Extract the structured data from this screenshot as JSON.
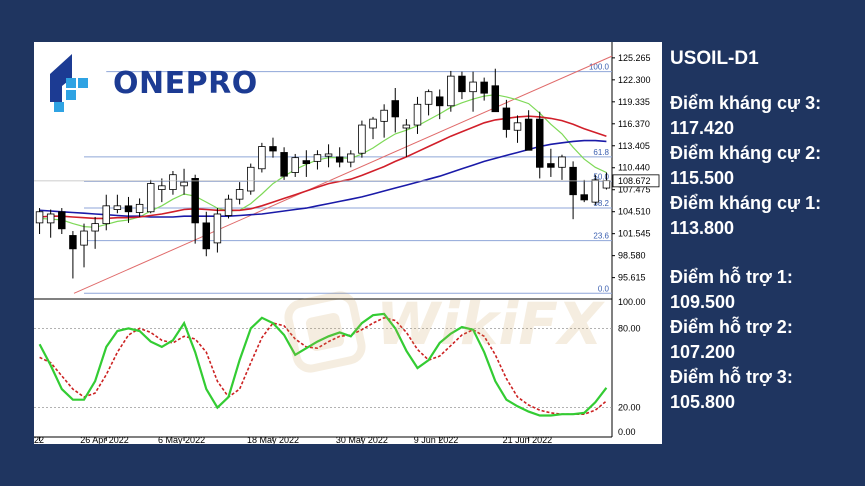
{
  "logo": {
    "text": "ONEPRO"
  },
  "watermark": {
    "text": "WikiFX"
  },
  "panel": {
    "symbol": "USOIL-D1",
    "levels": [
      {
        "label": "Điểm kháng cự 3:",
        "value": "117.420"
      },
      {
        "label": "Điểm kháng cự 2:",
        "value": "115.500"
      },
      {
        "label": "Điểm kháng cự 1:",
        "value": "113.800"
      },
      {
        "label": "Điểm hỗ trợ 1:",
        "value": "109.500"
      },
      {
        "label": "Điểm hỗ trợ 2:",
        "value": "107.200"
      },
      {
        "label": "Điểm hỗ trợ 3:",
        "value": "105.800"
      }
    ]
  },
  "colors": {
    "background": "#1f3560",
    "bull_candle": "#ffffff",
    "bear_candle": "#000000",
    "ma_fast": "#7ed957",
    "ma_mid": "#d11f2a",
    "ma_slow": "#1a1aa8",
    "fib_line": "#8fa6d8",
    "trendline": "#e06b6b",
    "stoch_k": "#33cc33",
    "stoch_d": "#cc2222"
  },
  "chart_data": {
    "type": "candlestick",
    "price_axis": {
      "ylim": [
        93.0,
        127.0
      ],
      "ticks": [
        "125.265",
        "122.300",
        "119.335",
        "116.370",
        "113.405",
        "110.440",
        "107.475",
        "104.510",
        "101.545",
        "98.580",
        "95.615"
      ],
      "tick_values": [
        125.265,
        122.3,
        119.335,
        116.37,
        113.405,
        110.44,
        107.475,
        104.51,
        101.545,
        98.58,
        95.615
      ],
      "current_price": "108.672"
    },
    "date_axis": {
      "labels": [
        "22",
        "26 Apr 2022",
        "6 May 2022",
        "18 May 2022",
        "30 May 2022",
        "9 Jun 2022",
        "21 Jun 2022"
      ],
      "label_index": [
        0,
        6,
        13,
        21,
        29,
        36,
        44
      ]
    },
    "fib_levels": [
      {
        "label": "100.0",
        "value": 123.4
      },
      {
        "label": "61.8",
        "value": 111.9
      },
      {
        "label": "50.0",
        "value": 108.6
      },
      {
        "label": "38.2",
        "value": 105.0
      },
      {
        "label": "23.6",
        "value": 100.6
      },
      {
        "label": "0.0",
        "value": 93.5
      }
    ],
    "candles": [
      {
        "o": 103.0,
        "h": 105.0,
        "l": 101.5,
        "c": 104.5
      },
      {
        "o": 103.0,
        "h": 104.8,
        "l": 101.0,
        "c": 104.2
      },
      {
        "o": 104.5,
        "h": 105.0,
        "l": 101.5,
        "c": 102.2
      },
      {
        "o": 101.3,
        "h": 101.9,
        "l": 95.5,
        "c": 99.5
      },
      {
        "o": 100.0,
        "h": 102.9,
        "l": 97.0,
        "c": 101.9
      },
      {
        "o": 101.9,
        "h": 103.8,
        "l": 99.5,
        "c": 102.9
      },
      {
        "o": 102.9,
        "h": 106.8,
        "l": 102.0,
        "c": 105.3
      },
      {
        "o": 104.8,
        "h": 106.8,
        "l": 104.3,
        "c": 105.3
      },
      {
        "o": 105.3,
        "h": 106.5,
        "l": 103.0,
        "c": 104.5
      },
      {
        "o": 104.4,
        "h": 106.3,
        "l": 103.8,
        "c": 105.5
      },
      {
        "o": 104.5,
        "h": 108.8,
        "l": 104.3,
        "c": 108.3
      },
      {
        "o": 107.5,
        "h": 109.0,
        "l": 105.8,
        "c": 108.0
      },
      {
        "o": 107.5,
        "h": 110.0,
        "l": 106.8,
        "c": 109.5
      },
      {
        "o": 108.0,
        "h": 110.3,
        "l": 106.8,
        "c": 108.5
      },
      {
        "o": 109.0,
        "h": 109.5,
        "l": 100.2,
        "c": 103.0
      },
      {
        "o": 103.0,
        "h": 104.5,
        "l": 98.5,
        "c": 99.5
      },
      {
        "o": 100.3,
        "h": 105.0,
        "l": 99.0,
        "c": 104.2
      },
      {
        "o": 104.0,
        "h": 106.8,
        "l": 103.6,
        "c": 106.2
      },
      {
        "o": 106.2,
        "h": 108.5,
        "l": 105.5,
        "c": 107.5
      },
      {
        "o": 107.3,
        "h": 111.0,
        "l": 106.8,
        "c": 110.5
      },
      {
        "o": 110.3,
        "h": 113.8,
        "l": 109.8,
        "c": 113.3
      },
      {
        "o": 113.3,
        "h": 114.5,
        "l": 111.8,
        "c": 112.7
      },
      {
        "o": 112.5,
        "h": 113.2,
        "l": 108.8,
        "c": 109.3
      },
      {
        "o": 109.8,
        "h": 112.3,
        "l": 109.2,
        "c": 111.8
      },
      {
        "o": 111.4,
        "h": 112.8,
        "l": 109.2,
        "c": 111.0
      },
      {
        "o": 111.3,
        "h": 112.8,
        "l": 110.2,
        "c": 112.2
      },
      {
        "o": 112.0,
        "h": 113.6,
        "l": 110.5,
        "c": 112.3
      },
      {
        "o": 111.9,
        "h": 113.2,
        "l": 110.5,
        "c": 111.2
      },
      {
        "o": 111.2,
        "h": 112.8,
        "l": 110.5,
        "c": 112.3
      },
      {
        "o": 112.4,
        "h": 116.8,
        "l": 111.8,
        "c": 116.2
      },
      {
        "o": 115.8,
        "h": 117.3,
        "l": 114.3,
        "c": 117.0
      },
      {
        "o": 116.7,
        "h": 119.0,
        "l": 114.5,
        "c": 118.2
      },
      {
        "o": 119.5,
        "h": 121.2,
        "l": 115.2,
        "c": 117.3
      },
      {
        "o": 115.8,
        "h": 117.0,
        "l": 111.9,
        "c": 116.2
      },
      {
        "o": 116.2,
        "h": 120.0,
        "l": 115.0,
        "c": 119.0
      },
      {
        "o": 119.0,
        "h": 121.0,
        "l": 117.5,
        "c": 120.7
      },
      {
        "o": 120.0,
        "h": 121.0,
        "l": 117.0,
        "c": 118.8
      },
      {
        "o": 118.8,
        "h": 123.5,
        "l": 118.0,
        "c": 122.8
      },
      {
        "o": 122.8,
        "h": 123.4,
        "l": 119.7,
        "c": 120.7
      },
      {
        "o": 120.7,
        "h": 123.4,
        "l": 118.0,
        "c": 122.0
      },
      {
        "o": 122.0,
        "h": 122.6,
        "l": 119.5,
        "c": 120.5
      },
      {
        "o": 121.5,
        "h": 123.8,
        "l": 118.0,
        "c": 118.0
      },
      {
        "o": 118.5,
        "h": 119.6,
        "l": 114.5,
        "c": 115.6
      },
      {
        "o": 115.5,
        "h": 117.5,
        "l": 113.8,
        "c": 116.5
      },
      {
        "o": 117.0,
        "h": 118.2,
        "l": 112.8,
        "c": 112.8
      },
      {
        "o": 117.0,
        "h": 118.0,
        "l": 109.0,
        "c": 110.5
      },
      {
        "o": 111.0,
        "h": 113.0,
        "l": 109.2,
        "c": 110.5
      },
      {
        "o": 110.5,
        "h": 112.2,
        "l": 108.8,
        "c": 111.9
      },
      {
        "o": 110.5,
        "h": 111.3,
        "l": 103.5,
        "c": 106.8
      },
      {
        "o": 106.8,
        "h": 108.8,
        "l": 105.8,
        "c": 106.1
      },
      {
        "o": 105.8,
        "h": 109.5,
        "l": 105.4,
        "c": 108.8
      },
      {
        "o": 107.7,
        "h": 109.8,
        "l": 107.5,
        "c": 108.7
      }
    ],
    "ma_fast": [
      103.6,
      103.5,
      103.4,
      102.9,
      102.5,
      102.4,
      102.8,
      103.2,
      103.4,
      103.8,
      104.6,
      105.3,
      106.2,
      106.9,
      106.6,
      105.8,
      105.0,
      104.6,
      104.7,
      105.6,
      106.9,
      108.3,
      109.3,
      110.2,
      110.9,
      111.5,
      111.8,
      111.8,
      111.7,
      112.3,
      113.1,
      114.1,
      115.0,
      115.5,
      116.1,
      116.9,
      117.7,
      118.6,
      119.2,
      119.7,
      120.1,
      120.3,
      120.0,
      119.6,
      119.1,
      117.8,
      116.3,
      115.0,
      113.2,
      111.6,
      110.5,
      109.8
    ],
    "ma_mid": [
      103.8,
      103.9,
      103.9,
      103.8,
      103.7,
      103.6,
      103.6,
      103.7,
      103.7,
      103.8,
      104.0,
      104.2,
      104.5,
      104.8,
      104.9,
      104.8,
      104.7,
      104.7,
      104.7,
      104.9,
      105.3,
      105.8,
      106.3,
      106.8,
      107.3,
      107.8,
      108.3,
      108.6,
      108.9,
      109.4,
      110.0,
      110.6,
      111.3,
      111.9,
      112.6,
      113.3,
      114.0,
      114.7,
      115.3,
      115.9,
      116.5,
      116.9,
      117.1,
      117.3,
      117.4,
      117.3,
      117.1,
      116.8,
      116.3,
      115.7,
      115.2,
      114.7
    ],
    "ma_slow": [
      104.7,
      104.6,
      104.5,
      104.4,
      104.3,
      104.2,
      104.1,
      104.0,
      103.9,
      103.9,
      103.8,
      103.8,
      103.8,
      103.9,
      103.9,
      103.9,
      103.9,
      103.9,
      104.0,
      104.1,
      104.2,
      104.4,
      104.6,
      104.8,
      105.0,
      105.3,
      105.6,
      105.9,
      106.2,
      106.5,
      106.9,
      107.3,
      107.7,
      108.1,
      108.5,
      108.9,
      109.3,
      109.8,
      110.3,
      110.8,
      111.3,
      111.7,
      112.1,
      112.5,
      112.9,
      113.3,
      113.6,
      113.8,
      114.0,
      114.1,
      114.1,
      114.0
    ],
    "stochastic": {
      "ylim": [
        0,
        100
      ],
      "ticks": [
        "100.00",
        "80.00",
        "20.00",
        "0.00"
      ],
      "tick_values": [
        100,
        80,
        20,
        0
      ],
      "k": [
        68,
        52,
        34,
        26,
        26,
        40,
        66,
        78,
        80,
        78,
        70,
        66,
        71,
        84,
        62,
        34,
        20,
        28,
        56,
        80,
        88,
        84,
        75,
        60,
        65,
        70,
        74,
        77,
        74,
        84,
        90,
        91,
        80,
        63,
        50,
        56,
        69,
        76,
        81,
        79,
        62,
        40,
        26,
        21,
        17,
        14,
        14,
        15,
        15,
        16,
        24,
        35
      ],
      "d": [
        58,
        54,
        44,
        34,
        28,
        31,
        45,
        62,
        75,
        80,
        77,
        71,
        69,
        74,
        72,
        62,
        40,
        28,
        34,
        54,
        73,
        84,
        82,
        72,
        66,
        65,
        70,
        74,
        75,
        79,
        84,
        88,
        86,
        77,
        64,
        56,
        59,
        67,
        75,
        79,
        74,
        60,
        42,
        28,
        22,
        18,
        16,
        15,
        15,
        15,
        18,
        25
      ]
    }
  }
}
